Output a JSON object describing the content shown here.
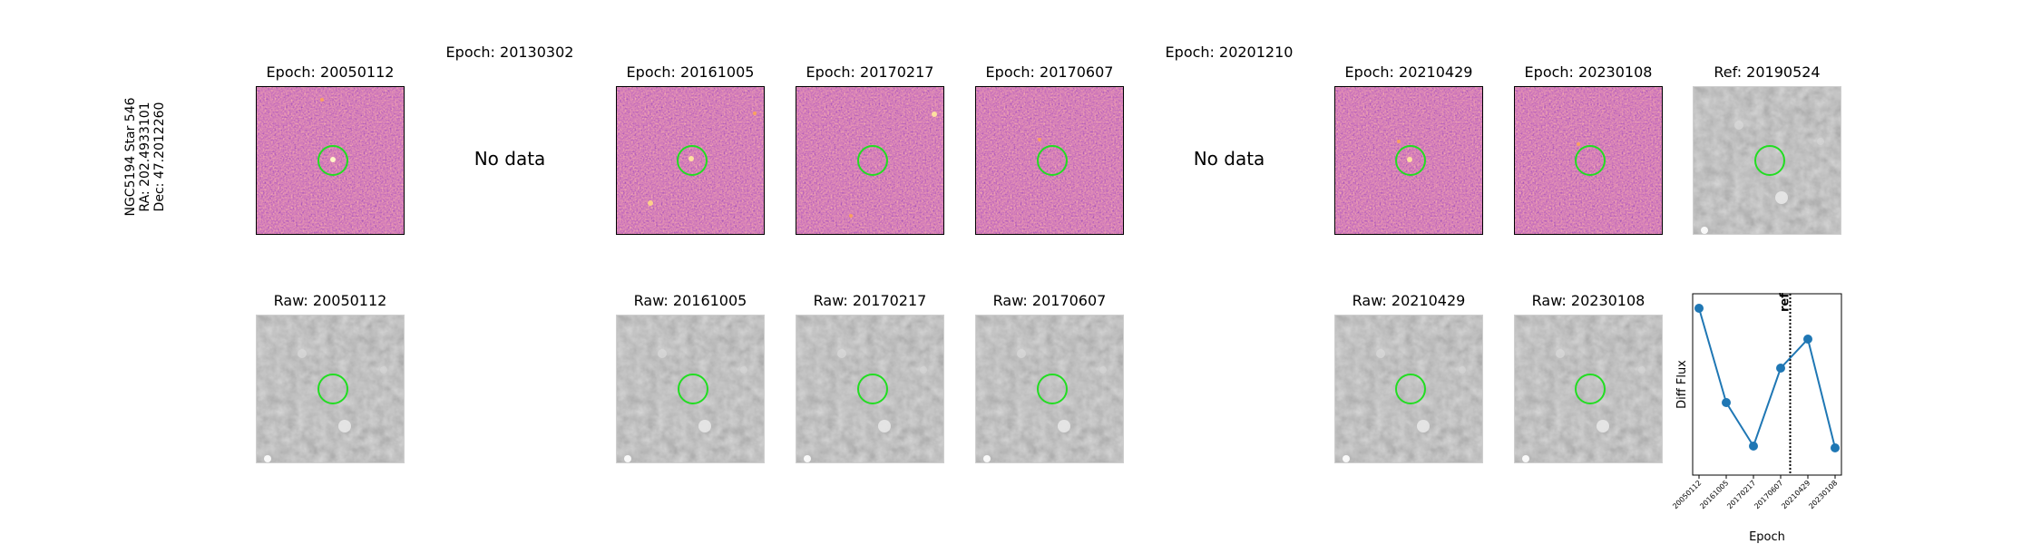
{
  "row_label": [
    "NGC5194 Star 546",
    "RA: 202.4933101",
    "Dec: 47.2012260"
  ],
  "no_data_text": "No data",
  "diff_titles": [
    "Epoch: 20050112",
    "Epoch: 20130302",
    "Epoch: 20161005",
    "Epoch: 20170217",
    "Epoch: 20170607",
    "Epoch: 20201210",
    "Epoch: 20210429",
    "Epoch: 20230108",
    "Ref: 20190524"
  ],
  "raw_titles": [
    "Raw: 20050112",
    "Raw: 20161005",
    "Raw: 20170217",
    "Raw: 20170607",
    "Raw: 20210429",
    "Raw: 20230108"
  ],
  "colors": {
    "aperture": "#22dd22",
    "series": "#1f77b4"
  },
  "chart_data": {
    "type": "line",
    "title": "",
    "xlabel": "Epoch",
    "ylabel": "Diff Flux",
    "categories": [
      "20050112",
      "20161005",
      "20170217",
      "20170607",
      "20210429",
      "20230108"
    ],
    "values": [
      0.92,
      0.4,
      0.16,
      0.59,
      0.75,
      0.15
    ],
    "ylim": [
      0.0,
      1.0
    ],
    "reference_line": {
      "label": "ref",
      "between": [
        "20170607",
        "20210429"
      ],
      "position": 0.35,
      "style": "dotted"
    },
    "grid": false,
    "legend": "none"
  }
}
